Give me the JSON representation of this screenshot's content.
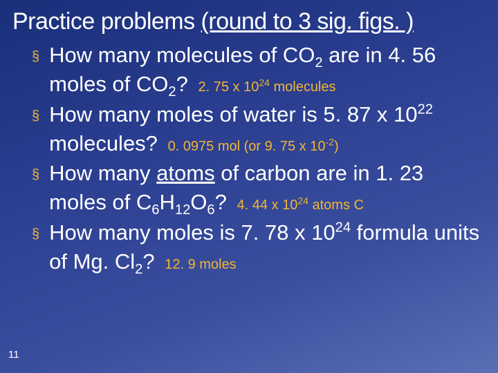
{
  "slide": {
    "background_gradient": [
      "#1a2f7a",
      "#2a3d8f",
      "#3b4f9f",
      "#5a6fb5"
    ],
    "text_color": "#ffffff",
    "accent_color": "#f2b634",
    "title_main": "Practice problems ",
    "title_sub": "(round to 3 sig. figs. )",
    "title_fontsize": 34,
    "body_fontsize": 31,
    "answer_fontsize": 20,
    "bullet_char": "§",
    "page_number": "11",
    "items": [
      {
        "q_html": "How many molecules of CO<sub>2</sub> are in 4. 56 moles of CO<sub>2</sub>?",
        "a_html": "2. 75 x 10<sup>24</sup> molecules"
      },
      {
        "q_html": "How many moles of water is 5. 87 x 10<sup>22</sup>  molecules?",
        "a_html": "0. 0975 mol (or 9. 75 x 10<sup>-2</sup>)"
      },
      {
        "q_html": "How many <span class=\"u\">atoms</span> of  carbon are in 1. 23 moles of C<sub>6</sub>H<sub>12</sub>O<sub>6</sub>?",
        "a_html": "4. 44 x 10<sup>24</sup> atoms C"
      },
      {
        "q_html": "How many moles is 7. 78 x 10<sup>24</sup> formula units of Mg. Cl<sub>2</sub>?",
        "a_html": "12. 9 moles"
      }
    ]
  }
}
